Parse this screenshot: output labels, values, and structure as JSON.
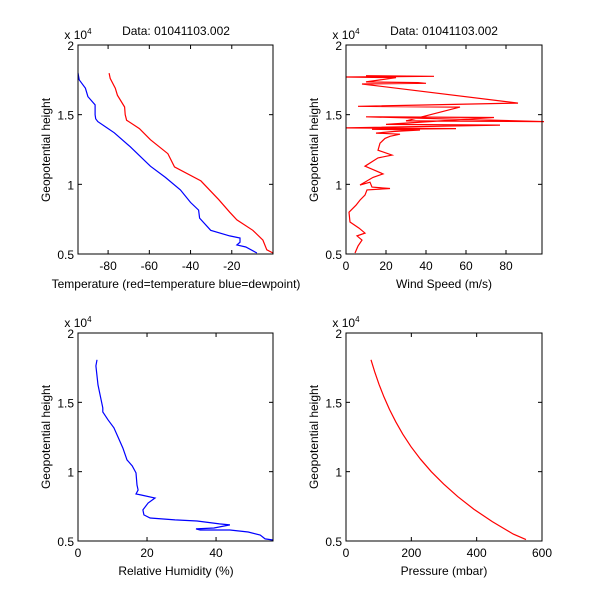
{
  "figure": {
    "background": "#ffffff"
  },
  "chart_data": [
    {
      "id": "temperature",
      "type": "line",
      "title": "Data: 01041103.002",
      "xlabel": "Temperature (red=temperature blue=dewpoint)",
      "ylabel": "Geopotential height",
      "y_exponent_label": "x 10",
      "y_exponent_power": "4",
      "xlim": [
        -94.6,
        0
      ],
      "ylim": [
        5000,
        20000
      ],
      "xticks": [
        -80,
        -60,
        -40,
        -20
      ],
      "xtick_labels": [
        "-80",
        "-60",
        "-40",
        "-20"
      ],
      "yticks": [
        5000,
        10000,
        15000,
        20000
      ],
      "ytick_labels": [
        "0.5",
        "1",
        "1.5",
        "2"
      ],
      "grid": false,
      "series": [
        {
          "name": "temperature",
          "color": "#ff0000",
          "x": [
            -79.5,
            -79,
            -76.5,
            -75.5,
            -72,
            -71.7,
            -71,
            -64.8,
            -59.5,
            -51,
            -47.8,
            -35,
            -26.3,
            -21,
            -17.5,
            -9.8,
            -4.9,
            -3,
            0
          ],
          "y": [
            17980,
            17600,
            16900,
            16400,
            15550,
            15000,
            14600,
            14000,
            13200,
            12200,
            11250,
            10250,
            8900,
            8000,
            7450,
            6700,
            6000,
            5300,
            5070
          ]
        },
        {
          "name": "dewpoint",
          "color": "#0000ff",
          "x": [
            -94.6,
            -94,
            -91,
            -89.8,
            -86.3,
            -86.3,
            -86,
            -85,
            -77,
            -69.3,
            -59.5,
            -52.2,
            -44.9,
            -40,
            -36.1,
            -35.6,
            -30.2,
            -21,
            -16,
            -16,
            -17.5,
            -13.2,
            -7.8
          ],
          "y": [
            18000,
            17500,
            16900,
            16300,
            15700,
            15000,
            14700,
            14500,
            13700,
            12700,
            11300,
            10500,
            9600,
            8700,
            8150,
            7580,
            6700,
            6300,
            6150,
            5850,
            5650,
            5500,
            5070
          ]
        }
      ]
    },
    {
      "id": "wind",
      "type": "line",
      "title": "Data: 01041103.002",
      "xlabel": "Wind Speed (m/s)",
      "ylabel": "Geopotential height",
      "y_exponent_label": "x 10",
      "y_exponent_power": "4",
      "xlim": [
        0,
        98
      ],
      "ylim": [
        5000,
        20000
      ],
      "xticks": [
        0,
        20,
        40,
        60,
        80
      ],
      "xtick_labels": [
        "0",
        "20",
        "40",
        "60",
        "80"
      ],
      "yticks": [
        5000,
        10000,
        15000,
        20000
      ],
      "ytick_labels": [
        "0.5",
        "1",
        "1.5",
        "2"
      ],
      "grid": false,
      "series": [
        {
          "name": "wind speed",
          "color": "#ff0000",
          "x": [
            4.5,
            6,
            8,
            5.5,
            9.5,
            6.5,
            2,
            1.5,
            5,
            7,
            9.5,
            10.5,
            22,
            13,
            12,
            7,
            13.5,
            18.5,
            14.5,
            9.5,
            16,
            23,
            16,
            17,
            19.5,
            22,
            27,
            15,
            24.5,
            37,
            13,
            55,
            0,
            77,
            20,
            74,
            10,
            99,
            30,
            57,
            6,
            86,
            8,
            40,
            36,
            10,
            25,
            0,
            44,
            10
          ],
          "y": [
            5070,
            5570,
            6000,
            6300,
            6500,
            6860,
            7300,
            8000,
            8500,
            8870,
            9230,
            9600,
            9700,
            9800,
            10150,
            9950,
            10500,
            10750,
            11000,
            11300,
            11900,
            12100,
            12450,
            12950,
            13300,
            13450,
            13600,
            13680,
            13800,
            13900,
            13950,
            14000,
            14050,
            14250,
            14300,
            14800,
            14850,
            14500,
            14550,
            15540,
            15600,
            15830,
            17200,
            17250,
            17300,
            17350,
            17650,
            17700,
            17750,
            17800
          ]
        }
      ]
    },
    {
      "id": "humidity",
      "type": "line",
      "title": "",
      "xlabel": "Relative Humidity (%)",
      "ylabel": "Geopotential height",
      "y_exponent_label": "x 10",
      "y_exponent_power": "4",
      "xlim": [
        0,
        56.5
      ],
      "ylim": [
        5000,
        20000
      ],
      "xticks": [
        0,
        20,
        40
      ],
      "xtick_labels": [
        "0",
        "20",
        "40"
      ],
      "yticks": [
        5000,
        10000,
        15000,
        20000
      ],
      "ytick_labels": [
        "0.5",
        "1",
        "1.5",
        "2"
      ],
      "grid": false,
      "series": [
        {
          "name": "relative humidity",
          "color": "#0000ff",
          "x": [
            5.5,
            5.2,
            5.8,
            6.7,
            7.2,
            7.2,
            8.7,
            10.4,
            11.6,
            13,
            14.2,
            15.7,
            16.8,
            17.1,
            17.4,
            16.8,
            18.3,
            22.3,
            20.3,
            18.8,
            19.1,
            20.9,
            28.1,
            34.5,
            41,
            44,
            39.4,
            34.2,
            35.4,
            44,
            49.3,
            52.8,
            54.2,
            56.5
          ],
          "y": [
            18070,
            17630,
            16260,
            15180,
            14600,
            14300,
            13740,
            13160,
            12500,
            11700,
            10850,
            10420,
            9910,
            9040,
            8680,
            8390,
            8320,
            8100,
            7740,
            7240,
            6880,
            6660,
            6520,
            6440,
            6230,
            6160,
            5940,
            5870,
            5790,
            5790,
            5650,
            5430,
            5150,
            5070
          ]
        }
      ]
    },
    {
      "id": "pressure",
      "type": "line",
      "title": "",
      "xlabel": "Pressure (mbar)",
      "ylabel": "Geopotential height",
      "y_exponent_label": "x 10",
      "y_exponent_power": "4",
      "xlim": [
        0,
        600
      ],
      "ylim": [
        5000,
        20000
      ],
      "xticks": [
        0,
        200,
        400,
        600
      ],
      "xtick_labels": [
        "0",
        "200",
        "400",
        "600"
      ],
      "yticks": [
        5000,
        10000,
        15000,
        20000
      ],
      "ytick_labels": [
        "0.5",
        "1",
        "1.5",
        "2"
      ],
      "grid": false,
      "series": [
        {
          "name": "pressure",
          "color": "#ff0000",
          "x": [
            76.5,
            88,
            101,
            116,
            133,
            152,
            174,
            199,
            228,
            261,
            299,
            342,
            391,
            448,
            512,
            551
          ],
          "y": [
            18070,
            17200,
            16300,
            15400,
            14500,
            13600,
            12700,
            11800,
            10900,
            10000,
            9100,
            8200,
            7300,
            6400,
            5500,
            5100
          ]
        }
      ]
    }
  ]
}
